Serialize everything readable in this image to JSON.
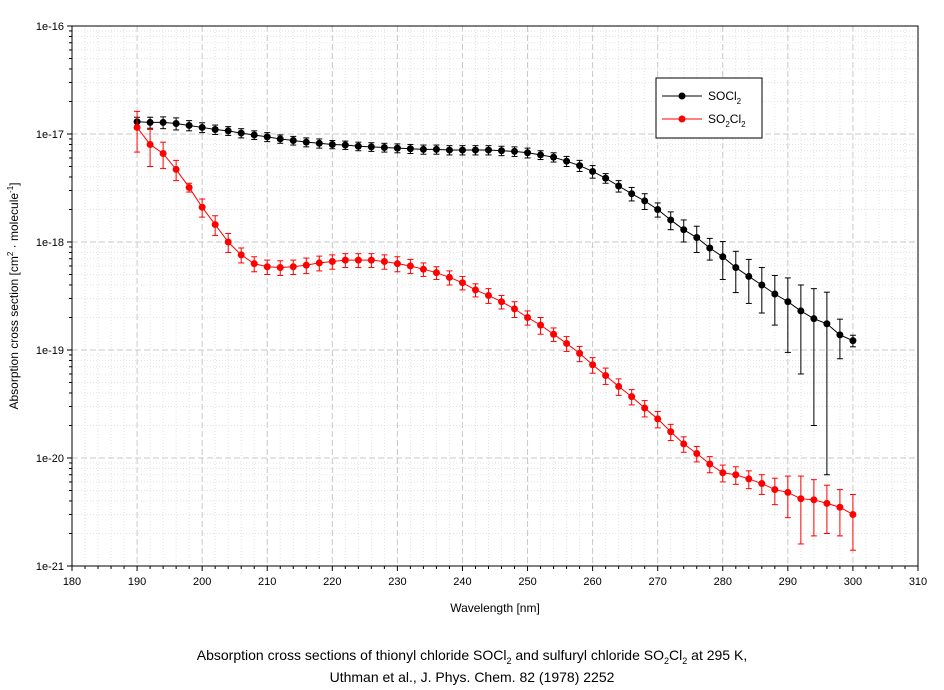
{
  "chart_data": {
    "type": "scatter",
    "yscale": "log",
    "xlabel": "Wavelength [nm]",
    "ylabel": "Absorption cross section [cm² · molecule⁻¹]",
    "ylabel_parts": {
      "p1": "Absorption cross section [cm",
      "p2": "2",
      "p3": " · molecule",
      "p4": "-1",
      "p5": "]"
    },
    "xlim": [
      180,
      310
    ],
    "ylim": [
      1e-21,
      1e-16
    ],
    "xticks": [
      180,
      190,
      200,
      210,
      220,
      230,
      240,
      250,
      260,
      270,
      280,
      290,
      300,
      310
    ],
    "yticks": [
      {
        "value": 1e-21,
        "label": "1e-21"
      },
      {
        "value": 1e-20,
        "label": "1e-20"
      },
      {
        "value": 1e-19,
        "label": "1e-19"
      },
      {
        "value": 1e-18,
        "label": "1e-18"
      },
      {
        "value": 1e-17,
        "label": "1e-17"
      },
      {
        "value": 1e-16,
        "label": "1e-16"
      }
    ],
    "grid": true,
    "legend_position": "top-right",
    "series": [
      {
        "name": "SOCl2",
        "legend_parts": [
          "SOCl",
          "2",
          "",
          ""
        ],
        "color": "#000000",
        "x": [
          190,
          192,
          194,
          196,
          198,
          200,
          202,
          204,
          206,
          208,
          210,
          212,
          214,
          216,
          218,
          220,
          222,
          224,
          226,
          228,
          230,
          232,
          234,
          236,
          238,
          240,
          242,
          244,
          246,
          248,
          250,
          252,
          254,
          256,
          258,
          260,
          262,
          264,
          266,
          268,
          270,
          272,
          274,
          276,
          278,
          280,
          282,
          284,
          286,
          288,
          290,
          292,
          294,
          296,
          298,
          300
        ],
        "y": [
          1.3e-17,
          1.28e-17,
          1.28e-17,
          1.25e-17,
          1.2e-17,
          1.15e-17,
          1.1e-17,
          1.07e-17,
          1.02e-17,
          9.8e-18,
          9.4e-18,
          9e-18,
          8.7e-18,
          8.4e-18,
          8.2e-18,
          8e-18,
          7.9e-18,
          7.7e-18,
          7.6e-18,
          7.5e-18,
          7.4e-18,
          7.3e-18,
          7.2e-18,
          7.2e-18,
          7.1e-18,
          7.1e-18,
          7.1e-18,
          7.1e-18,
          7e-18,
          6.9e-18,
          6.7e-18,
          6.4e-18,
          6.1e-18,
          5.6e-18,
          5.1e-18,
          4.5e-18,
          3.9e-18,
          3.3e-18,
          2.8e-18,
          2.4e-18,
          2e-18,
          1.6e-18,
          1.3e-18,
          1.1e-18,
          8.8e-19,
          7.3e-19,
          5.8e-19,
          4.8e-19,
          4e-19,
          3.3e-19,
          2.8e-19,
          2.3e-19,
          1.95e-19,
          1.75e-19,
          1.38e-19,
          1.22e-19
        ],
        "err": [
          1.3e-18,
          1.5e-18,
          1.6e-18,
          1.6e-18,
          1.3e-18,
          1.2e-18,
          1.1e-18,
          1e-18,
          1e-18,
          9e-19,
          9e-19,
          8e-19,
          8e-19,
          8e-19,
          8e-19,
          7e-19,
          7e-19,
          7e-19,
          7e-19,
          7e-19,
          7e-19,
          7e-19,
          7e-19,
          7e-19,
          7e-19,
          7e-19,
          7e-19,
          7e-19,
          7e-19,
          7e-19,
          7e-19,
          6e-19,
          6e-19,
          6e-19,
          6e-19,
          6e-19,
          4e-19,
          4e-19,
          4e-19,
          4e-19,
          3e-19,
          3e-19,
          3e-19,
          3e-19,
          2e-19,
          2.8e-19,
          2.4e-19,
          2.1e-19,
          1.8e-19,
          1.6e-19,
          1.85e-19,
          1.7e-19,
          1.75e-19,
          1.68e-19,
          5.5e-20,
          1.5e-20
        ]
      },
      {
        "name": "SO2Cl2",
        "legend_parts": [
          "SO",
          "2",
          "Cl",
          "2"
        ],
        "color": "#ff0000",
        "x": [
          190,
          192,
          194,
          196,
          198,
          200,
          202,
          204,
          206,
          208,
          210,
          212,
          214,
          216,
          218,
          220,
          222,
          224,
          226,
          228,
          230,
          232,
          234,
          236,
          238,
          240,
          242,
          244,
          246,
          248,
          250,
          252,
          254,
          256,
          258,
          260,
          262,
          264,
          266,
          268,
          270,
          272,
          274,
          276,
          278,
          280,
          282,
          284,
          286,
          288,
          290,
          292,
          294,
          296,
          298,
          300
        ],
        "y": [
          1.15e-17,
          8e-18,
          6.6e-18,
          4.7e-18,
          3.2e-18,
          2.1e-18,
          1.45e-18,
          1e-18,
          7.6e-19,
          6.3e-19,
          5.9e-19,
          5.8e-19,
          5.9e-19,
          6.1e-19,
          6.4e-19,
          6.6e-19,
          6.8e-19,
          6.8e-19,
          6.8e-19,
          6.6e-19,
          6.3e-19,
          6e-19,
          5.6e-19,
          5.2e-19,
          4.7e-19,
          4.2e-19,
          3.6e-19,
          3.2e-19,
          2.8e-19,
          2.4e-19,
          2e-19,
          1.7e-19,
          1.4e-19,
          1.15e-19,
          9.3e-20,
          7.3e-20,
          5.8e-20,
          4.6e-20,
          3.7e-20,
          2.9e-20,
          2.3e-20,
          1.75e-20,
          1.35e-20,
          1.1e-20,
          8.8e-21,
          7.3e-21,
          7e-21,
          6.4e-21,
          5.8e-21,
          5.1e-21,
          4.8e-21,
          4.2e-21,
          4.1e-21,
          3.8e-21,
          3.5e-21,
          3e-21
        ],
        "err": [
          4.7e-18,
          3e-18,
          1.8e-18,
          1e-18,
          3e-19,
          4e-19,
          3e-19,
          2e-19,
          1.2e-19,
          1e-19,
          9e-20,
          9e-20,
          9e-20,
          1e-19,
          1e-19,
          1e-19,
          1e-19,
          1e-19,
          1e-19,
          1e-19,
          1e-19,
          9e-20,
          8e-20,
          7e-20,
          7e-20,
          6e-20,
          5e-20,
          5e-20,
          4e-20,
          4e-20,
          3e-20,
          3e-20,
          2e-20,
          1.8e-20,
          1.5e-20,
          1.2e-20,
          1e-20,
          8e-21,
          6e-21,
          5e-21,
          4e-21,
          3e-21,
          2.2e-21,
          1.8e-21,
          1.5e-21,
          1.3e-21,
          1.3e-21,
          1.2e-21,
          1.2e-21,
          1.4e-21,
          2e-21,
          2.6e-21,
          2.2e-21,
          1.8e-21,
          1.6e-21,
          1.6e-21
        ]
      }
    ]
  },
  "caption": {
    "line1": {
      "p1": "Absorption cross sections of thionyl chloride SOCl",
      "p2": "2",
      "p3": " and sulfuryl chloride SO",
      "p4": "2",
      "p5": "Cl",
      "p6": "2",
      "p7": " at 295 K,"
    },
    "line2": "Uthman et al., J. Phys. Chem. 82 (1978) 2252"
  }
}
